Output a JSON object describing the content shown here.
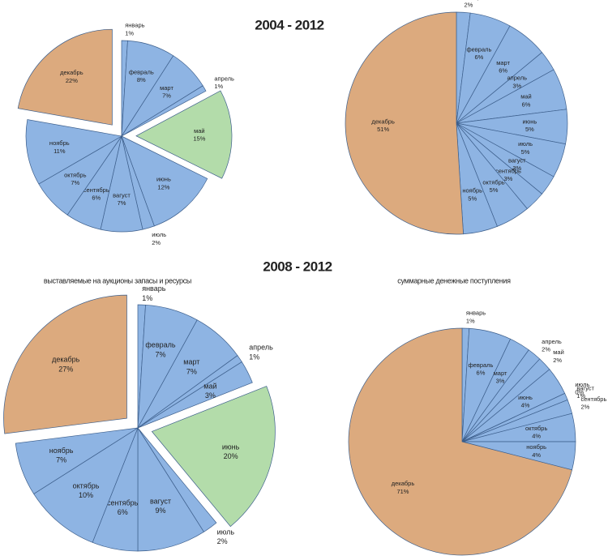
{
  "headings": [
    "2004 - 2012",
    "2008 - 2012"
  ],
  "chart_data": [
    {
      "type": "pie",
      "categories": [
        "январь",
        "февраль",
        "март",
        "апрель",
        "май",
        "июнь",
        "июль",
        "вагуст",
        "сентябрь",
        "октябрь",
        "ноябрь",
        "декабрь"
      ],
      "values": [
        1,
        8,
        7,
        1,
        15,
        12,
        2,
        7,
        6,
        7,
        11,
        22
      ],
      "value_labels": [
        "1%",
        "8%",
        "7%",
        "1%",
        "15%",
        "12%",
        "2%",
        "7%",
        "6%",
        "7%",
        "11%",
        "22%"
      ],
      "colors": [
        "#8eb4e3",
        "#8eb4e3",
        "#8eb4e3",
        "#8eb4e3",
        "#b3dcaa",
        "#8eb4e3",
        "#8eb4e3",
        "#8eb4e3",
        "#8eb4e3",
        "#8eb4e3",
        "#8eb4e3",
        "#dcaa7e"
      ],
      "exploded": [
        4,
        11
      ]
    },
    {
      "type": "pie",
      "categories": [
        "январь",
        "февраль",
        "март",
        "апрель",
        "май",
        "июнь",
        "июль",
        "вагуст",
        "сентябрь",
        "октябрь",
        "ноябрь",
        "декабрь"
      ],
      "values": [
        2,
        6,
        6,
        3,
        6,
        5,
        5,
        3,
        3,
        5,
        5,
        51
      ],
      "value_labels": [
        "2%",
        "6%",
        "6%",
        "3%",
        "6%",
        "5%",
        "5%",
        "3%",
        "3%",
        "5%",
        "5%",
        "51%"
      ],
      "colors": [
        "#8eb4e3",
        "#8eb4e3",
        "#8eb4e3",
        "#8eb4e3",
        "#8eb4e3",
        "#8eb4e3",
        "#8eb4e3",
        "#8eb4e3",
        "#8eb4e3",
        "#8eb4e3",
        "#8eb4e3",
        "#dcaa7e"
      ],
      "exploded": []
    },
    {
      "type": "pie",
      "subtitle": "выставляемые на аукционы запасы и ресурсы",
      "categories": [
        "январь",
        "февраль",
        "март",
        "апрель",
        "май",
        "июнь",
        "июль",
        "вагуст",
        "сентябрь",
        "октябрь",
        "ноябрь",
        "декабрь"
      ],
      "values": [
        1,
        7,
        7,
        1,
        3,
        20,
        2,
        9,
        6,
        10,
        7,
        27
      ],
      "value_labels": [
        "1%",
        "7%",
        "7%",
        "1%",
        "3%",
        "20%",
        "2%",
        "9%",
        "6%",
        "10%",
        "7%",
        "27%"
      ],
      "colors": [
        "#8eb4e3",
        "#8eb4e3",
        "#8eb4e3",
        "#8eb4e3",
        "#8eb4e3",
        "#b3dcaa",
        "#8eb4e3",
        "#8eb4e3",
        "#8eb4e3",
        "#8eb4e3",
        "#8eb4e3",
        "#dcaa7e"
      ],
      "exploded": [
        5,
        11
      ]
    },
    {
      "type": "pie",
      "subtitle": "суммарные денежные поступления",
      "categories": [
        "январь",
        "февраль",
        "март",
        "апрель",
        "май",
        "июнь",
        "июль",
        "вагуст",
        "сентябрь",
        "октябрь",
        "ноябрь",
        "декабрь"
      ],
      "values": [
        1,
        6,
        3,
        2,
        2,
        4,
        0,
        1,
        2,
        4,
        4,
        71
      ],
      "value_labels": [
        "1%",
        "6%",
        "3%",
        "2%",
        "2%",
        "4%",
        "0%",
        "1%",
        "2%",
        "4%",
        "4%",
        "71%"
      ],
      "colors": [
        "#8eb4e3",
        "#8eb4e3",
        "#8eb4e3",
        "#8eb4e3",
        "#8eb4e3",
        "#8eb4e3",
        "#8eb4e3",
        "#8eb4e3",
        "#8eb4e3",
        "#8eb4e3",
        "#8eb4e3",
        "#dcaa7e"
      ],
      "exploded": []
    }
  ]
}
